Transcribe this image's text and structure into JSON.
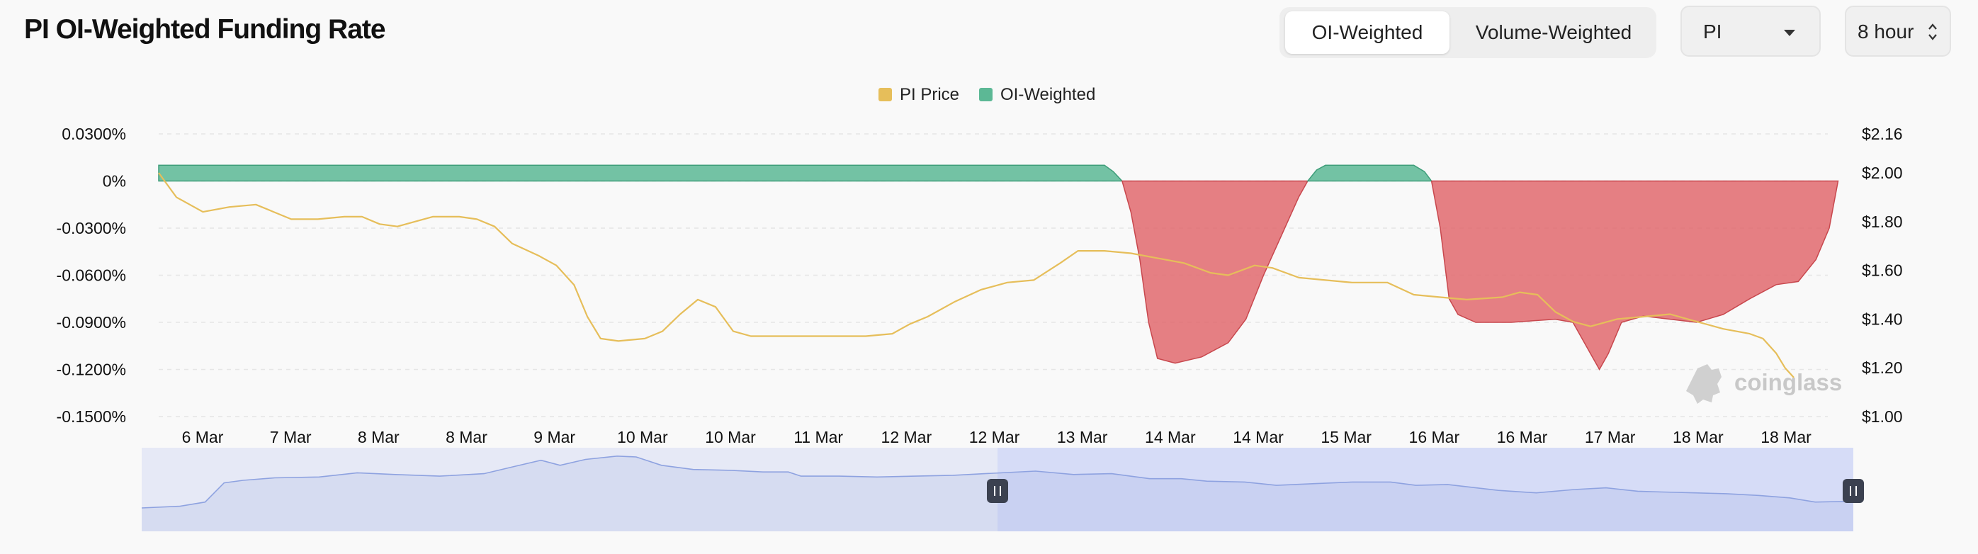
{
  "header": {
    "title": "PI OI-Weighted Funding Rate",
    "toggle": [
      "OI-Weighted",
      "Volume-Weighted"
    ],
    "toggle_active": 0,
    "symbol_select": "PI",
    "interval_select": "8 hour"
  },
  "watermark": "coinglass",
  "colors": {
    "price": "#e6be5a",
    "positive": "#5cb895",
    "negative": "#e06469",
    "navigator_fill": "#e6e9f6",
    "navigator_selected": "#d6dcf7",
    "navigator_line": "#8ea2e0"
  },
  "chart_data": {
    "type": "area",
    "legend": [
      "PI Price",
      "OI-Weighted"
    ],
    "legend_position": "top-center",
    "x_ticks": [
      "6 Mar",
      "7 Mar",
      "8 Mar",
      "8 Mar",
      "9 Mar",
      "10 Mar",
      "10 Mar",
      "11 Mar",
      "12 Mar",
      "12 Mar",
      "13 Mar",
      "14 Mar",
      "14 Mar",
      "15 Mar",
      "16 Mar",
      "16 Mar",
      "17 Mar",
      "18 Mar",
      "18 Mar"
    ],
    "y_left_ticks": [
      "0.0300%",
      "0%",
      "-0.0300%",
      "-0.0600%",
      "-0.0900%",
      "-0.1200%",
      "-0.1500%"
    ],
    "y_left_range": [
      -0.15,
      0.03
    ],
    "y_right_ticks": [
      "$2.16",
      "$2.00",
      "$1.80",
      "$1.60",
      "$1.40",
      "$1.20",
      "$1.00"
    ],
    "y_right_range": [
      1.0,
      2.16
    ],
    "grid": true,
    "x_range": [
      0,
      18.9
    ],
    "series": [
      {
        "name": "OI-Weighted",
        "axis": "left",
        "points": [
          [
            0,
            0.01
          ],
          [
            10.7,
            0.01
          ],
          [
            10.8,
            0.006
          ],
          [
            10.9,
            0
          ],
          [
            11.0,
            -0.02
          ],
          [
            11.1,
            -0.05
          ],
          [
            11.2,
            -0.09
          ],
          [
            11.3,
            -0.113
          ],
          [
            11.5,
            -0.116
          ],
          [
            11.8,
            -0.112
          ],
          [
            12.1,
            -0.103
          ],
          [
            12.3,
            -0.088
          ],
          [
            12.5,
            -0.06
          ],
          [
            12.7,
            -0.035
          ],
          [
            12.9,
            -0.01
          ],
          [
            13.0,
            0
          ],
          [
            13.1,
            0.007
          ],
          [
            13.2,
            0.01
          ],
          [
            14.2,
            0.01
          ],
          [
            14.32,
            0.006
          ],
          [
            14.4,
            0
          ],
          [
            14.5,
            -0.03
          ],
          [
            14.6,
            -0.075
          ],
          [
            14.7,
            -0.085
          ],
          [
            14.9,
            -0.09
          ],
          [
            15.3,
            -0.09
          ],
          [
            15.8,
            -0.088
          ],
          [
            16.0,
            -0.09
          ],
          [
            16.15,
            -0.105
          ],
          [
            16.3,
            -0.12
          ],
          [
            16.4,
            -0.11
          ],
          [
            16.55,
            -0.09
          ],
          [
            16.8,
            -0.086
          ],
          [
            17.1,
            -0.088
          ],
          [
            17.4,
            -0.09
          ],
          [
            17.7,
            -0.085
          ],
          [
            18.0,
            -0.075
          ],
          [
            18.3,
            -0.066
          ],
          [
            18.55,
            -0.064
          ],
          [
            18.75,
            -0.05
          ],
          [
            18.9,
            -0.03
          ],
          [
            19.0,
            0
          ]
        ]
      },
      {
        "name": "PI Price",
        "axis": "right",
        "points": [
          [
            0,
            2.0
          ],
          [
            0.2,
            1.9
          ],
          [
            0.5,
            1.84
          ],
          [
            0.8,
            1.86
          ],
          [
            1.1,
            1.87
          ],
          [
            1.3,
            1.84
          ],
          [
            1.5,
            1.81
          ],
          [
            1.8,
            1.81
          ],
          [
            2.1,
            1.82
          ],
          [
            2.3,
            1.82
          ],
          [
            2.5,
            1.79
          ],
          [
            2.7,
            1.78
          ],
          [
            2.9,
            1.8
          ],
          [
            3.1,
            1.82
          ],
          [
            3.4,
            1.82
          ],
          [
            3.6,
            1.81
          ],
          [
            3.8,
            1.78
          ],
          [
            4.0,
            1.71
          ],
          [
            4.3,
            1.66
          ],
          [
            4.5,
            1.62
          ],
          [
            4.7,
            1.54
          ],
          [
            4.85,
            1.41
          ],
          [
            5.0,
            1.32
          ],
          [
            5.2,
            1.31
          ],
          [
            5.5,
            1.32
          ],
          [
            5.7,
            1.35
          ],
          [
            5.9,
            1.42
          ],
          [
            6.1,
            1.48
          ],
          [
            6.3,
            1.45
          ],
          [
            6.5,
            1.35
          ],
          [
            6.7,
            1.33
          ],
          [
            7.0,
            1.33
          ],
          [
            7.5,
            1.33
          ],
          [
            8.0,
            1.33
          ],
          [
            8.3,
            1.34
          ],
          [
            8.5,
            1.38
          ],
          [
            8.7,
            1.41
          ],
          [
            9.0,
            1.47
          ],
          [
            9.3,
            1.52
          ],
          [
            9.6,
            1.55
          ],
          [
            9.9,
            1.56
          ],
          [
            10.2,
            1.63
          ],
          [
            10.4,
            1.68
          ],
          [
            10.7,
            1.68
          ],
          [
            11.0,
            1.67
          ],
          [
            11.3,
            1.65
          ],
          [
            11.6,
            1.63
          ],
          [
            11.9,
            1.59
          ],
          [
            12.1,
            1.58
          ],
          [
            12.4,
            1.62
          ],
          [
            12.6,
            1.61
          ],
          [
            12.9,
            1.57
          ],
          [
            13.2,
            1.56
          ],
          [
            13.5,
            1.55
          ],
          [
            13.9,
            1.55
          ],
          [
            14.2,
            1.5
          ],
          [
            14.5,
            1.49
          ],
          [
            14.8,
            1.48
          ],
          [
            15.2,
            1.49
          ],
          [
            15.4,
            1.51
          ],
          [
            15.6,
            1.5
          ],
          [
            15.8,
            1.43
          ],
          [
            16.0,
            1.39
          ],
          [
            16.2,
            1.37
          ],
          [
            16.5,
            1.4
          ],
          [
            16.8,
            1.41
          ],
          [
            17.1,
            1.42
          ],
          [
            17.4,
            1.39
          ],
          [
            17.7,
            1.36
          ],
          [
            18.0,
            1.34
          ],
          [
            18.15,
            1.32
          ],
          [
            18.3,
            1.26
          ],
          [
            18.4,
            1.2
          ],
          [
            18.5,
            1.16
          ]
        ]
      }
    ],
    "navigator": {
      "points": [
        [
          0,
          0.28
        ],
        [
          0.6,
          0.3
        ],
        [
          1.0,
          0.35
        ],
        [
          1.3,
          0.58
        ],
        [
          1.6,
          0.61
        ],
        [
          2.1,
          0.64
        ],
        [
          2.8,
          0.65
        ],
        [
          3.4,
          0.7
        ],
        [
          4.0,
          0.68
        ],
        [
          4.7,
          0.66
        ],
        [
          5.4,
          0.69
        ],
        [
          5.9,
          0.78
        ],
        [
          6.3,
          0.85
        ],
        [
          6.6,
          0.79
        ],
        [
          7.0,
          0.86
        ],
        [
          7.5,
          0.9
        ],
        [
          7.8,
          0.89
        ],
        [
          8.2,
          0.79
        ],
        [
          8.7,
          0.74
        ],
        [
          9.3,
          0.73
        ],
        [
          9.8,
          0.71
        ],
        [
          10.2,
          0.71
        ],
        [
          10.4,
          0.66
        ],
        [
          11.0,
          0.66
        ],
        [
          11.6,
          0.65
        ],
        [
          12.2,
          0.66
        ],
        [
          12.8,
          0.67
        ],
        [
          13.3,
          0.69
        ],
        [
          14.1,
          0.72
        ],
        [
          14.7,
          0.68
        ],
        [
          15.3,
          0.69
        ],
        [
          15.9,
          0.63
        ],
        [
          16.4,
          0.63
        ],
        [
          16.8,
          0.6
        ],
        [
          17.4,
          0.59
        ],
        [
          17.9,
          0.55
        ],
        [
          18.5,
          0.57
        ],
        [
          19.1,
          0.59
        ],
        [
          19.7,
          0.59
        ],
        [
          20.1,
          0.55
        ],
        [
          20.6,
          0.56
        ],
        [
          21.4,
          0.49
        ],
        [
          22.0,
          0.46
        ],
        [
          22.6,
          0.5
        ],
        [
          23.1,
          0.52
        ],
        [
          23.6,
          0.48
        ],
        [
          24.0,
          0.47
        ],
        [
          24.5,
          0.46
        ],
        [
          25.0,
          0.45
        ],
        [
          25.5,
          0.43
        ],
        [
          26.0,
          0.4
        ],
        [
          26.4,
          0.35
        ],
        [
          27.0,
          0.36
        ]
      ],
      "x_range": [
        0,
        27
      ],
      "selection": [
        0.5,
        1.0
      ]
    }
  }
}
